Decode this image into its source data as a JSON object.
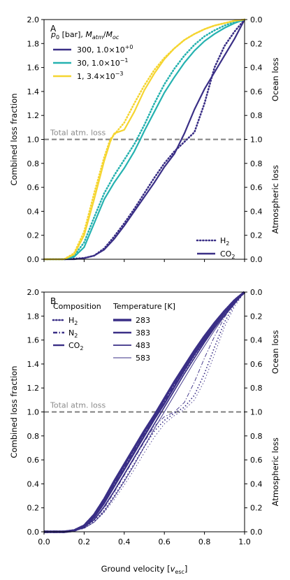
{
  "chart_data": [
    {
      "panel": "A",
      "type": "line",
      "ylabel_left": "Combined loss fraction",
      "ylabel_right_top": "Ocean loss",
      "ylabel_right_bottom": "Atmospheric loss",
      "xlim": [
        0,
        1
      ],
      "ylim": [
        0,
        2
      ],
      "grid": false,
      "y_ticks_left": [
        "0.0",
        "0.2",
        "0.4",
        "0.6",
        "0.8",
        "1.0",
        "1.2",
        "1.4",
        "1.6",
        "1.8",
        "2.0"
      ],
      "y_ticks_right": [
        "0.0",
        "0.2",
        "0.4",
        "0.6",
        "0.8",
        "1.0",
        "0.8",
        "0.6",
        "0.4",
        "0.2",
        "0.0"
      ],
      "annotation": "Total atm. loss",
      "reference_line": 1.0,
      "legend_title": "p0 [bar], Matm/Moc",
      "legend_title_parts": {
        "p": "p",
        "p_sub": "0",
        "bar": " [bar], ",
        "M": "M",
        "atm": "atm",
        "slash": "/",
        "M2": "M",
        "oc": "oc"
      },
      "legend_placement": "upper-left",
      "series": [
        {
          "name": "300, 1.0×10+0",
          "label_parts": {
            "pre": "300, 1.0×10",
            "sup": "+0"
          },
          "color": "#3a2f86",
          "composition": "CO2",
          "style": "solid",
          "x": [
            0.0,
            0.1,
            0.15,
            0.2,
            0.25,
            0.3,
            0.35,
            0.4,
            0.45,
            0.5,
            0.55,
            0.6,
            0.65,
            0.7,
            0.75,
            0.8,
            0.85,
            0.9,
            0.95,
            1.0
          ],
          "y": [
            0.0,
            0.0,
            0.0,
            0.01,
            0.03,
            0.08,
            0.17,
            0.28,
            0.4,
            0.52,
            0.64,
            0.77,
            0.88,
            1.05,
            1.25,
            1.42,
            1.56,
            1.7,
            1.84,
            2.0
          ]
        },
        {
          "name": "300, 1.0×10+0",
          "color": "#3a2f86",
          "composition": "H2",
          "style": "dotted",
          "x": [
            0.0,
            0.1,
            0.2,
            0.25,
            0.3,
            0.35,
            0.4,
            0.45,
            0.5,
            0.55,
            0.6,
            0.65,
            0.7,
            0.75,
            0.8,
            0.85,
            0.9,
            0.95,
            1.0
          ],
          "y": [
            0.0,
            0.0,
            0.01,
            0.03,
            0.09,
            0.19,
            0.3,
            0.42,
            0.55,
            0.68,
            0.8,
            0.9,
            0.98,
            1.06,
            1.3,
            1.6,
            1.78,
            1.9,
            2.0
          ]
        },
        {
          "name": "30, 1.0×10−1",
          "label_parts": {
            "pre": "30, 1.0×10",
            "sup": "−1"
          },
          "color": "#25b2b0",
          "composition": "CO2",
          "style": "solid",
          "x": [
            0.0,
            0.1,
            0.15,
            0.2,
            0.25,
            0.3,
            0.35,
            0.4,
            0.45,
            0.48,
            0.5,
            0.55,
            0.6,
            0.65,
            0.7,
            0.75,
            0.8,
            0.85,
            0.9,
            0.95,
            1.0
          ],
          "y": [
            0.0,
            0.0,
            0.02,
            0.1,
            0.3,
            0.5,
            0.64,
            0.76,
            0.9,
            1.0,
            1.07,
            1.23,
            1.39,
            1.52,
            1.64,
            1.74,
            1.82,
            1.88,
            1.93,
            1.97,
            2.0
          ]
        },
        {
          "name": "30, 1.0×10−1",
          "color": "#25b2b0",
          "composition": "H2",
          "style": "dotted",
          "x": [
            0.0,
            0.1,
            0.15,
            0.2,
            0.25,
            0.3,
            0.35,
            0.4,
            0.45,
            0.5,
            0.55,
            0.6,
            0.65,
            0.7,
            0.75,
            0.8,
            0.85,
            0.9,
            0.95,
            1.0
          ],
          "y": [
            0.0,
            0.0,
            0.03,
            0.14,
            0.35,
            0.55,
            0.7,
            0.83,
            0.96,
            1.12,
            1.3,
            1.46,
            1.59,
            1.7,
            1.79,
            1.86,
            1.91,
            1.95,
            1.98,
            2.0
          ]
        },
        {
          "name": "1, 3.4×10−3",
          "label_parts": {
            "pre": "1, 3.4×10",
            "sup": "−3"
          },
          "color": "#f5d531",
          "composition": "CO2",
          "style": "solid",
          "x": [
            0.0,
            0.1,
            0.15,
            0.2,
            0.25,
            0.3,
            0.33,
            0.35,
            0.4,
            0.45,
            0.5,
            0.55,
            0.6,
            0.65,
            0.7,
            0.75,
            0.8,
            0.85,
            0.9,
            0.95,
            1.0
          ],
          "y": [
            0.0,
            0.0,
            0.04,
            0.2,
            0.5,
            0.82,
            0.98,
            1.05,
            1.08,
            1.23,
            1.41,
            1.55,
            1.67,
            1.76,
            1.83,
            1.88,
            1.92,
            1.95,
            1.97,
            1.99,
            2.0
          ]
        },
        {
          "name": "1, 3.4×10−3",
          "color": "#f5d531",
          "composition": "H2",
          "style": "dotted",
          "x": [
            0.0,
            0.1,
            0.15,
            0.2,
            0.25,
            0.3,
            0.33,
            0.36,
            0.4,
            0.45,
            0.5,
            0.55,
            0.6,
            0.65,
            0.7,
            0.75,
            0.8,
            0.85,
            0.9,
            0.95,
            1.0
          ],
          "y": [
            0.0,
            0.0,
            0.05,
            0.23,
            0.55,
            0.85,
            1.0,
            1.06,
            1.14,
            1.3,
            1.45,
            1.58,
            1.68,
            1.76,
            1.83,
            1.88,
            1.92,
            1.95,
            1.97,
            1.99,
            2.0
          ]
        }
      ],
      "style_legend": [
        {
          "label_pre": "H",
          "label_sub": "2",
          "style": "dotted"
        },
        {
          "label_pre": "CO",
          "label_sub": "2",
          "style": "solid"
        }
      ]
    },
    {
      "panel": "B",
      "type": "line",
      "xlabel": "Ground velocity [vesc]",
      "xlabel_parts": {
        "pre": "Ground velocity [",
        "v": "v",
        "sub": "esc",
        "post": "]"
      },
      "ylabel_left": "Combined loss fraction",
      "ylabel_right_top": "Ocean loss",
      "ylabel_right_bottom": "Atmospheric loss",
      "xlim": [
        0,
        1
      ],
      "ylim": [
        0,
        2
      ],
      "grid": false,
      "x_ticks": [
        "0.0",
        "0.2",
        "0.4",
        "0.6",
        "0.8",
        "1.0"
      ],
      "y_ticks_left": [
        "0.0",
        "0.2",
        "0.4",
        "0.6",
        "0.8",
        "1.0",
        "1.2",
        "1.4",
        "1.6",
        "1.8",
        "2.0"
      ],
      "y_ticks_right": [
        "0.0",
        "0.2",
        "0.4",
        "0.6",
        "0.8",
        "1.0",
        "0.8",
        "0.6",
        "0.4",
        "0.2",
        "0.0"
      ],
      "annotation": "Total atm. loss",
      "reference_line": 1.0,
      "color": "#3a2f86",
      "composition_legend_title": "Composition",
      "composition_legend": [
        {
          "label_pre": "H",
          "label_sub": "2",
          "style": "dotted"
        },
        {
          "label_pre": "N",
          "label_sub": "2",
          "style": "dashdot"
        },
        {
          "label_pre": "CO",
          "label_sub": "2",
          "style": "solid"
        }
      ],
      "temperature_legend_title": "Temperature [K]",
      "temperature_legend": [
        {
          "label": "283",
          "width": 3.6
        },
        {
          "label": "383",
          "width": 2.6
        },
        {
          "label": "483",
          "width": 1.7
        },
        {
          "label": "583",
          "width": 0.9
        }
      ],
      "legend_placement": "upper-left",
      "series": [
        {
          "composition": "CO2",
          "temperature": "283",
          "x": [
            0,
            0.1,
            0.15,
            0.2,
            0.25,
            0.3,
            0.35,
            0.4,
            0.45,
            0.5,
            0.55,
            0.6,
            0.65,
            0.7,
            0.75,
            0.8,
            0.85,
            0.9,
            0.95,
            1.0
          ],
          "y": [
            0,
            0,
            0.01,
            0.05,
            0.14,
            0.27,
            0.42,
            0.56,
            0.7,
            0.84,
            0.97,
            1.11,
            1.25,
            1.38,
            1.51,
            1.63,
            1.74,
            1.84,
            1.93,
            2.0
          ]
        },
        {
          "composition": "CO2",
          "temperature": "383",
          "x": [
            0,
            0.1,
            0.15,
            0.2,
            0.25,
            0.3,
            0.35,
            0.4,
            0.45,
            0.5,
            0.55,
            0.6,
            0.65,
            0.7,
            0.75,
            0.8,
            0.85,
            0.9,
            0.95,
            1.0
          ],
          "y": [
            0,
            0,
            0.01,
            0.04,
            0.12,
            0.24,
            0.38,
            0.52,
            0.66,
            0.8,
            0.94,
            1.07,
            1.21,
            1.35,
            1.48,
            1.6,
            1.72,
            1.83,
            1.92,
            2.0
          ]
        },
        {
          "composition": "CO2",
          "temperature": "483",
          "x": [
            0,
            0.1,
            0.15,
            0.2,
            0.25,
            0.3,
            0.35,
            0.4,
            0.45,
            0.5,
            0.55,
            0.6,
            0.65,
            0.7,
            0.75,
            0.8,
            0.85,
            0.9,
            0.95,
            1.0
          ],
          "y": [
            0,
            0,
            0.01,
            0.04,
            0.1,
            0.21,
            0.34,
            0.48,
            0.62,
            0.76,
            0.9,
            1.04,
            1.18,
            1.32,
            1.45,
            1.58,
            1.7,
            1.81,
            1.91,
            2.0
          ]
        },
        {
          "composition": "CO2",
          "temperature": "583",
          "x": [
            0,
            0.1,
            0.15,
            0.2,
            0.25,
            0.3,
            0.35,
            0.4,
            0.45,
            0.5,
            0.55,
            0.6,
            0.65,
            0.7,
            0.75,
            0.8,
            0.85,
            0.9,
            0.95,
            1.0
          ],
          "y": [
            0,
            0,
            0.01,
            0.03,
            0.08,
            0.17,
            0.29,
            0.42,
            0.56,
            0.71,
            0.86,
            1.0,
            1.14,
            1.28,
            1.42,
            1.55,
            1.68,
            1.8,
            1.9,
            2.0
          ]
        },
        {
          "composition": "N2",
          "temperature": "283",
          "x": [
            0,
            0.1,
            0.15,
            0.2,
            0.25,
            0.3,
            0.35,
            0.4,
            0.45,
            0.5,
            0.55,
            0.6,
            0.65,
            0.7,
            0.75,
            0.8,
            0.85,
            0.9,
            0.95,
            1.0
          ],
          "y": [
            0,
            0,
            0.01,
            0.05,
            0.14,
            0.27,
            0.41,
            0.55,
            0.69,
            0.83,
            0.96,
            1.09,
            1.23,
            1.36,
            1.49,
            1.61,
            1.73,
            1.84,
            1.93,
            2.0
          ]
        },
        {
          "composition": "N2",
          "temperature": "583",
          "x": [
            0,
            0.1,
            0.15,
            0.2,
            0.25,
            0.3,
            0.35,
            0.4,
            0.45,
            0.5,
            0.55,
            0.6,
            0.65,
            0.7,
            0.75,
            0.8,
            0.85,
            0.9,
            0.95,
            1.0
          ],
          "y": [
            0,
            0,
            0.01,
            0.04,
            0.1,
            0.2,
            0.33,
            0.47,
            0.61,
            0.75,
            0.88,
            0.96,
            1.0,
            1.08,
            1.25,
            1.45,
            1.63,
            1.79,
            1.91,
            2.0
          ]
        },
        {
          "composition": "H2",
          "temperature": "283",
          "x": [
            0,
            0.1,
            0.15,
            0.2,
            0.25,
            0.3,
            0.35,
            0.4,
            0.45,
            0.5,
            0.55,
            0.6,
            0.65,
            0.7,
            0.75,
            0.8,
            0.85,
            0.9,
            0.95,
            1.0
          ],
          "y": [
            0,
            0,
            0.01,
            0.05,
            0.13,
            0.26,
            0.4,
            0.54,
            0.68,
            0.82,
            0.95,
            1.08,
            1.22,
            1.35,
            1.48,
            1.6,
            1.72,
            1.83,
            1.93,
            2.0
          ]
        },
        {
          "composition": "H2",
          "temperature": "483",
          "x": [
            0,
            0.1,
            0.15,
            0.2,
            0.25,
            0.3,
            0.35,
            0.4,
            0.45,
            0.5,
            0.55,
            0.6,
            0.65,
            0.7,
            0.75,
            0.8,
            0.85,
            0.9,
            0.95,
            1.0
          ],
          "y": [
            0,
            0,
            0.01,
            0.03,
            0.09,
            0.18,
            0.3,
            0.43,
            0.57,
            0.71,
            0.84,
            0.93,
            0.99,
            1.04,
            1.14,
            1.32,
            1.54,
            1.75,
            1.9,
            2.0
          ]
        },
        {
          "composition": "H2",
          "temperature": "583",
          "x": [
            0,
            0.1,
            0.15,
            0.2,
            0.25,
            0.3,
            0.35,
            0.4,
            0.45,
            0.5,
            0.55,
            0.6,
            0.65,
            0.7,
            0.75,
            0.8,
            0.85,
            0.9,
            0.95,
            1.0
          ],
          "y": [
            0,
            0,
            0.01,
            0.03,
            0.08,
            0.16,
            0.27,
            0.39,
            0.52,
            0.66,
            0.79,
            0.9,
            0.97,
            1.02,
            1.1,
            1.26,
            1.48,
            1.71,
            1.88,
            2.0
          ]
        }
      ]
    }
  ]
}
